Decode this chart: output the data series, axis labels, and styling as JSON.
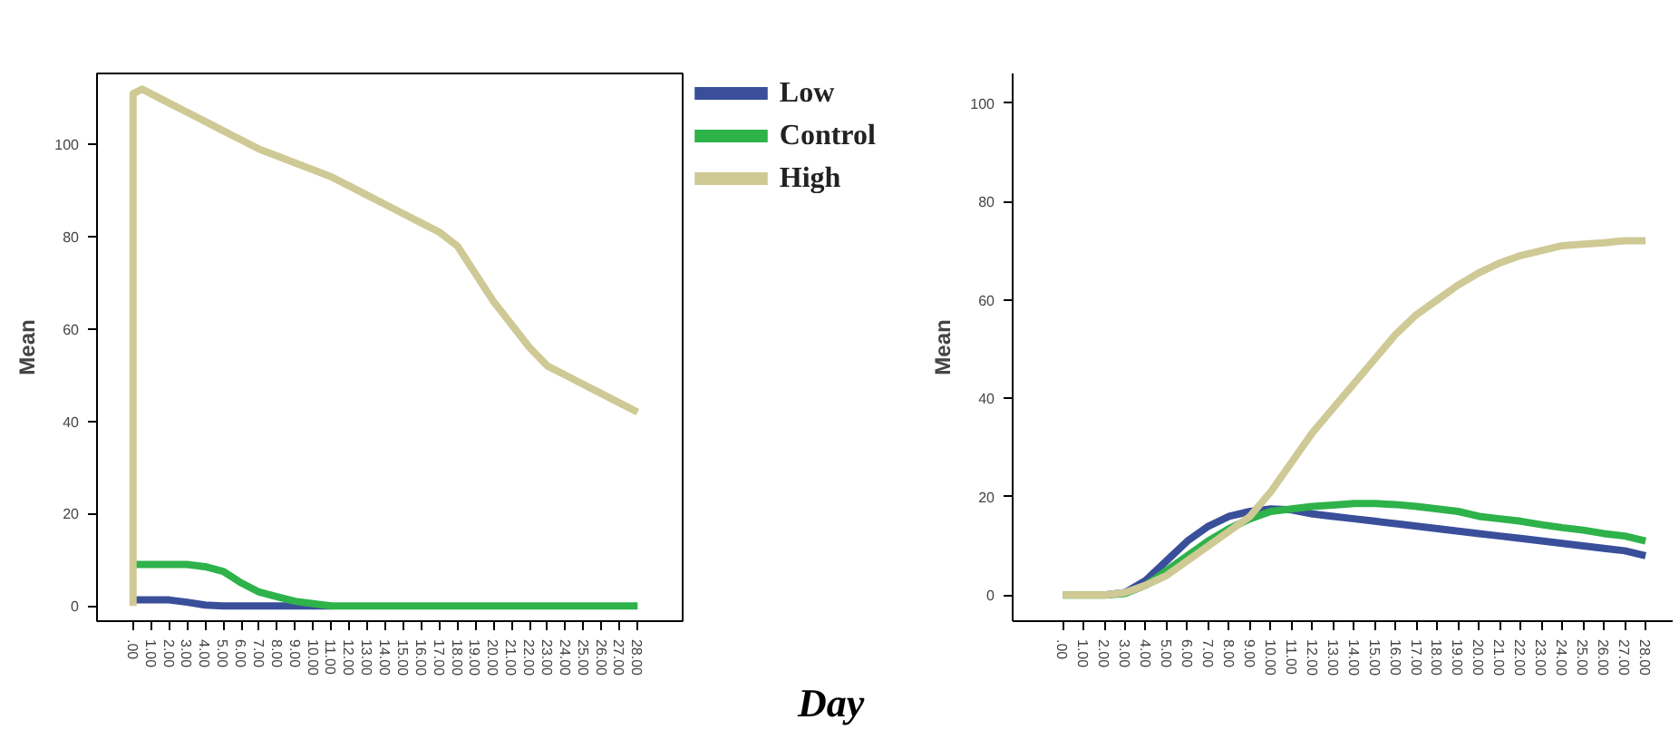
{
  "chart_data": [
    {
      "type": "line",
      "xlabel": "Day",
      "ylabel": "Mean",
      "legend": "top right",
      "grid": false,
      "marker": "none",
      "line_style": "solid",
      "xlim": [
        -2,
        30.5
      ],
      "ylim": [
        -3.3,
        115.4
      ],
      "yticks": [
        0,
        20,
        40,
        60,
        80,
        100
      ],
      "xticks": [
        {
          "value": 0,
          "label": ".00"
        },
        {
          "value": 1,
          "label": "1.00"
        },
        {
          "value": 2,
          "label": "2.00"
        },
        {
          "value": 3,
          "label": "3.00"
        },
        {
          "value": 4,
          "label": "4.00"
        },
        {
          "value": 5,
          "label": "5.00"
        },
        {
          "value": 6,
          "label": "6.00"
        },
        {
          "value": 7,
          "label": "7.00"
        },
        {
          "value": 8,
          "label": "8.00"
        },
        {
          "value": 9,
          "label": "9.00"
        },
        {
          "value": 10,
          "label": "10.00"
        },
        {
          "value": 11,
          "label": "11.00"
        },
        {
          "value": 12,
          "label": "12.00"
        },
        {
          "value": 13,
          "label": "13.00"
        },
        {
          "value": 14,
          "label": "14.00"
        },
        {
          "value": 15,
          "label": "15.00"
        },
        {
          "value": 16,
          "label": "16.00"
        },
        {
          "value": 17,
          "label": "17.00"
        },
        {
          "value": 18,
          "label": "18.00"
        },
        {
          "value": 19,
          "label": "19.00"
        },
        {
          "value": 20,
          "label": "20.00"
        },
        {
          "value": 21,
          "label": "21.00"
        },
        {
          "value": 22,
          "label": "22.00"
        },
        {
          "value": 23,
          "label": "23.00"
        },
        {
          "value": 24,
          "label": "24.00"
        },
        {
          "value": 25,
          "label": "25.00"
        },
        {
          "value": 26,
          "label": "26.00"
        },
        {
          "value": 27,
          "label": "27.00"
        },
        {
          "value": 28,
          "label": "28.00"
        }
      ],
      "x": [
        0,
        1,
        2,
        3,
        4,
        5,
        6,
        7,
        8,
        9,
        10,
        11,
        12,
        13,
        14,
        15,
        16,
        17,
        18,
        19,
        20,
        21,
        22,
        23,
        24,
        25,
        26,
        27,
        28
      ],
      "series": [
        {
          "name": "Low",
          "color": "#3a4f9a",
          "values": [
            1.3,
            1.3,
            1.3,
            0.8,
            0.2,
            0,
            0,
            0,
            0,
            0,
            0,
            0,
            null,
            null,
            null,
            null,
            null,
            null,
            null,
            null,
            null,
            null,
            null,
            null,
            null,
            null,
            null,
            null,
            null
          ]
        },
        {
          "name": "Control",
          "color": "#2eb24a",
          "values": [
            9,
            9,
            9,
            9,
            8.5,
            7.5,
            5,
            3,
            2,
            1,
            0.5,
            0,
            0,
            0,
            0,
            0,
            0,
            0,
            0,
            0,
            0,
            0,
            0,
            0,
            0,
            0,
            0,
            0,
            0
          ]
        },
        {
          "name": "High",
          "color": "#cfc995",
          "x": [
            0,
            0,
            0.5,
            1,
            2,
            3,
            4,
            5,
            6,
            7,
            8,
            9,
            10,
            11,
            12,
            13,
            14,
            15,
            16,
            17,
            18,
            19,
            20,
            21,
            22,
            23,
            24,
            25,
            26,
            27,
            28
          ],
          "values": [
            0,
            111,
            112,
            111,
            109,
            107,
            105,
            103,
            101,
            99,
            97.5,
            96,
            94.5,
            93,
            91,
            89,
            87,
            85,
            83,
            81,
            78,
            72,
            66,
            61,
            56,
            52,
            50,
            48,
            46,
            44,
            42
          ]
        }
      ]
    },
    {
      "type": "line",
      "ylabel": "Mean",
      "grid": false,
      "marker": "none",
      "line_style": "solid",
      "xlim": [
        -2.4,
        29.3
      ],
      "ylim": [
        -5.3,
        106
      ],
      "yticks": [
        0,
        20,
        40,
        60,
        80,
        100
      ],
      "xticks": [
        {
          "value": 0,
          "label": ".00"
        },
        {
          "value": 1,
          "label": "1.00"
        },
        {
          "value": 2,
          "label": "2.00"
        },
        {
          "value": 3,
          "label": "3.00"
        },
        {
          "value": 4,
          "label": "4.00"
        },
        {
          "value": 5,
          "label": "5.00"
        },
        {
          "value": 6,
          "label": "6.00"
        },
        {
          "value": 7,
          "label": "7.00"
        },
        {
          "value": 8,
          "label": "8.00"
        },
        {
          "value": 9,
          "label": "9.00"
        },
        {
          "value": 10,
          "label": "10.00"
        },
        {
          "value": 11,
          "label": "11.00"
        },
        {
          "value": 12,
          "label": "12.00"
        },
        {
          "value": 13,
          "label": "13.00"
        },
        {
          "value": 14,
          "label": "14.00"
        },
        {
          "value": 15,
          "label": "15.00"
        },
        {
          "value": 16,
          "label": "16.00"
        },
        {
          "value": 17,
          "label": "17.00"
        },
        {
          "value": 18,
          "label": "18.00"
        },
        {
          "value": 19,
          "label": "19.00"
        },
        {
          "value": 20,
          "label": "20.00"
        },
        {
          "value": 21,
          "label": "21.00"
        },
        {
          "value": 22,
          "label": "22.00"
        },
        {
          "value": 23,
          "label": "23.00"
        },
        {
          "value": 24,
          "label": "24.00"
        },
        {
          "value": 25,
          "label": "25.00"
        },
        {
          "value": 26,
          "label": "26.00"
        },
        {
          "value": 27,
          "label": "27.00"
        },
        {
          "value": 28,
          "label": "28.00"
        }
      ],
      "x": [
        0,
        1,
        2,
        3,
        4,
        5,
        6,
        7,
        8,
        9,
        10,
        11,
        12,
        13,
        14,
        15,
        16,
        17,
        18,
        19,
        20,
        21,
        22,
        23,
        24,
        25,
        26,
        27,
        28
      ],
      "series": [
        {
          "color": "#3a4f9a",
          "values": [
            null,
            null,
            0,
            0.5,
            3,
            7,
            11,
            14,
            16,
            17,
            17.5,
            17.3,
            16.5,
            16,
            15.5,
            15,
            14.5,
            14,
            13.5,
            13,
            12.5,
            12,
            11.5,
            11,
            10.5,
            10,
            9.5,
            9,
            8
          ]
        },
        {
          "color": "#2eb24a",
          "values": [
            0,
            0,
            0,
            0.3,
            2,
            5,
            8,
            11,
            13.5,
            15.5,
            17,
            17.5,
            18,
            18.3,
            18.6,
            18.6,
            18.4,
            18,
            17.5,
            17,
            16,
            15.5,
            15,
            14.3,
            13.7,
            13.2,
            12.5,
            12,
            11
          ]
        },
        {
          "color": "#cfc995",
          "values": [
            0,
            0,
            0,
            0.5,
            2,
            4,
            7,
            10,
            13,
            16,
            21,
            27,
            33,
            38,
            43,
            48,
            53,
            57,
            60,
            63,
            65.5,
            67.5,
            69,
            70,
            71,
            71.3,
            71.6,
            72,
            72
          ]
        }
      ]
    }
  ]
}
